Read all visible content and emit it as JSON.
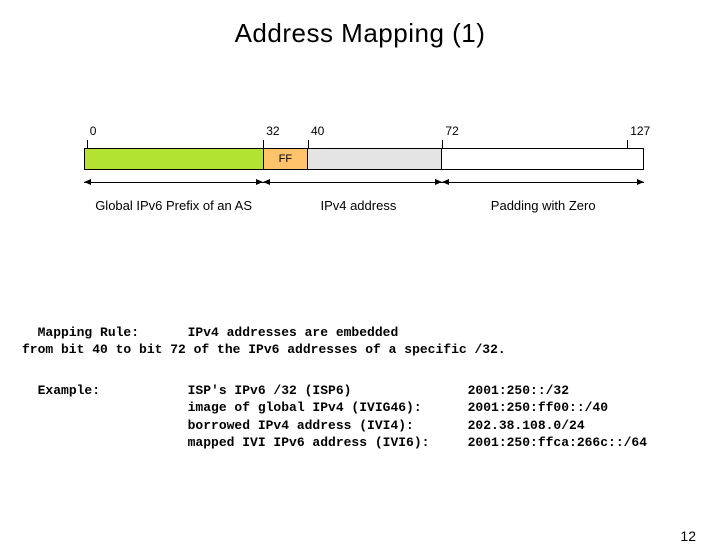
{
  "title": "Address Mapping (1)",
  "pageNumber": "12",
  "diagram": {
    "widthPx": 560,
    "ticks": [
      {
        "label": "0",
        "leftPct": 0.5
      },
      {
        "label": "32",
        "leftPct": 32.0
      },
      {
        "label": "40",
        "leftPct": 40.0
      },
      {
        "label": "72",
        "leftPct": 64.0
      },
      {
        "label": "127",
        "leftPct": 97.0
      }
    ],
    "segments": [
      {
        "color": "green",
        "widthPct": 32.0,
        "label": ""
      },
      {
        "color": "orange",
        "widthPct": 8.0,
        "label": "FF"
      },
      {
        "color": "grey",
        "widthPct": 24.0,
        "label": ""
      },
      {
        "color": "white",
        "widthPct": 36.0,
        "label": ""
      }
    ],
    "arrows": [
      {
        "leftPct": 0.0,
        "widthPct": 32.0
      },
      {
        "leftPct": 32.0,
        "widthPct": 32.0
      },
      {
        "leftPct": 64.0,
        "widthPct": 36.0
      }
    ],
    "segLabels": [
      {
        "text": "Global IPv6 Prefix of an AS",
        "centerPct": 16.0
      },
      {
        "text": "IPv4 address",
        "centerPct": 49.0
      },
      {
        "text": "Padding with Zero",
        "centerPct": 82.0
      }
    ]
  },
  "rows": {
    "mappingRule": {
      "label": "Mapping Rule:",
      "desc": "IPv4 addresses are embedded\nfrom bit 40 to bit 72 of the IPv6 addresses of a specific /32."
    },
    "example": {
      "label": "Example:",
      "leftLines": [
        "ISP's IPv6 /32 (ISP6)",
        "image of global IPv4 (IVIG46):",
        "borrowed IPv4 address (IVI4):",
        "mapped IVI IPv6 address (IVI6):"
      ],
      "rightLines": [
        "2001:250::/32",
        "2001:250:ff00::/40",
        "202.38.108.0/24",
        "2001:250:ffca:266c::/64"
      ]
    }
  }
}
